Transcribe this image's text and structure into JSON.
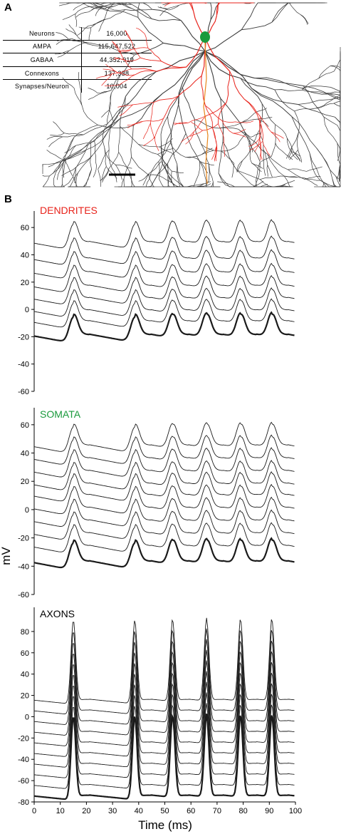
{
  "panel_a": {
    "label": "A",
    "table": [
      {
        "label": "Neurons",
        "value": "16,000"
      },
      {
        "label": "AMPA",
        "value": "115,647,522"
      },
      {
        "label": "GABAA",
        "value": "44,352,919"
      },
      {
        "label": "Connexons",
        "value": "137,338"
      },
      {
        "label": "Synapses/Neuron",
        "value": "10,004"
      }
    ],
    "colors": {
      "dendrite_highlight": "#e8231b",
      "soma": "#1a9a3c",
      "arbor": "#3a3a3a"
    }
  },
  "panel_b": {
    "label": "B",
    "ylabel": "mV",
    "xlabel": "Time (ms)"
  },
  "chart_data": [
    {
      "type": "line",
      "title": "DENDRITES",
      "title_color": "#e8231b",
      "xlim": [
        0,
        100
      ],
      "ylim": [
        -60,
        70
      ],
      "yticks": [
        -60,
        -40,
        -20,
        0,
        20,
        40,
        60
      ],
      "x_tick_labels_shown": false,
      "spike_times": [
        15,
        38.5,
        53,
        66,
        79,
        91
      ],
      "series_baselines": [
        -16,
        -6,
        2,
        11,
        20,
        30,
        40,
        52
      ],
      "peak_offset": 18,
      "bold_series_index": 0,
      "grid": false
    },
    {
      "type": "line",
      "title": "SOMATA",
      "title_color": "#1a9a3c",
      "xlim": [
        0,
        100
      ],
      "ylim": [
        -60,
        70
      ],
      "yticks": [
        -60,
        -40,
        -20,
        0,
        20,
        40,
        60
      ],
      "x_tick_labels_shown": false,
      "spike_times": [
        15,
        38.5,
        53,
        66,
        79,
        91
      ],
      "series_baselines": [
        -34,
        -23,
        -14,
        -5,
        4,
        13,
        21,
        30,
        39,
        48
      ],
      "peak_offset": 18,
      "bold_series_index": 0,
      "grid": false
    },
    {
      "type": "line",
      "title": "AXONS",
      "title_color": "#000000",
      "xlim": [
        0,
        100
      ],
      "ylim": [
        -80,
        100
      ],
      "yticks": [
        -80,
        -60,
        -40,
        -20,
        0,
        20,
        40,
        60,
        80
      ],
      "xticks": [
        0,
        10,
        20,
        30,
        40,
        50,
        60,
        70,
        80,
        90,
        100
      ],
      "x_tick_labels_shown": true,
      "spike_times": [
        15,
        38.5,
        53,
        66,
        79,
        91
      ],
      "series_baselines": [
        -72,
        -62,
        -52,
        -42,
        -32,
        -22,
        -12,
        -2,
        8,
        18
      ],
      "peak_offset": 78,
      "bold_series_index": 0,
      "grid": false
    }
  ]
}
